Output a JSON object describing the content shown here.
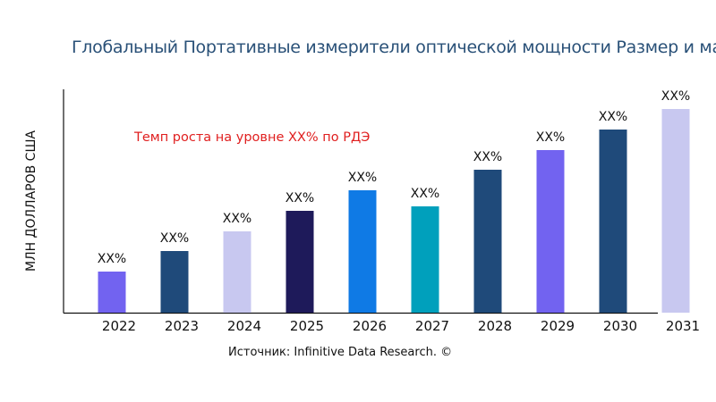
{
  "chart_data": {
    "type": "bar",
    "title": "Глобальный Портативные измерители оптической мощности Размер и ма",
    "ylabel": "МЛН ДОЛЛАРОВ США",
    "xlabel": "",
    "categories": [
      "2022",
      "2023",
      "2024",
      "2025",
      "2026",
      "2027",
      "2028",
      "2029",
      "2030",
      "2031"
    ],
    "values": [
      46,
      69,
      91,
      114,
      137,
      119,
      160,
      182,
      205,
      228
    ],
    "data_labels": [
      "XX%",
      "XX%",
      "XX%",
      "XX%",
      "XX%",
      "XX%",
      "XX%",
      "XX%",
      "XX%",
      "XX%"
    ],
    "colors": [
      "#7263f0",
      "#1f4a7a",
      "#c8c8f0",
      "#1e1a5a",
      "#0f7ae5",
      "#00a0bc",
      "#1f4a7a",
      "#7263f0",
      "#1f4a7a",
      "#c8c8f0"
    ],
    "ylim": [
      0,
      250
    ],
    "grid": false,
    "annotation": "Темп роста на уровне XX% по РДЭ",
    "source": "Источник: Infinitive Data Research. ©"
  }
}
